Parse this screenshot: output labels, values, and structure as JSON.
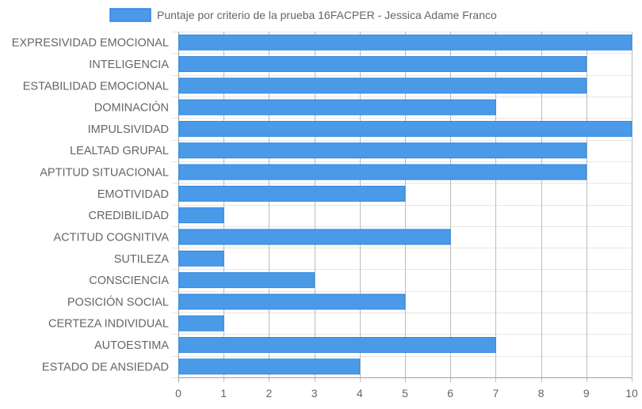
{
  "chart_data": {
    "type": "bar",
    "orientation": "horizontal",
    "categories": [
      "EXPRESIVIDAD EMOCIONAL",
      "INTELIGENCIA",
      "ESTABILIDAD EMOCIONAL",
      "DOMINACIÓN",
      "IMPULSIVIDAD",
      "LEALTAD GRUPAL",
      "APTITUD SITUACIONAL",
      "EMOTIVIDAD",
      "CREDIBILIDAD",
      "ACTITUD COGNITIVA",
      "SUTILEZA",
      "CONSCIENCIA",
      "POSICIÓN SOCIAL",
      "CERTEZA INDIVIDUAL",
      "AUTOESTIMA",
      "ESTADO DE ANSIEDAD"
    ],
    "series": [
      {
        "name": "Puntaje por criterio de la prueba 16FACPER - Jessica Adame Franco",
        "values": [
          10,
          9,
          9,
          7,
          10,
          9,
          9,
          5,
          1,
          6,
          1,
          3,
          5,
          1,
          7,
          4
        ],
        "color": "#4a9ae8"
      }
    ],
    "xlim": [
      0,
      10
    ],
    "x_ticks": [
      "0",
      "1",
      "2",
      "3",
      "4",
      "5",
      "6",
      "7",
      "8",
      "9",
      "10"
    ],
    "grid": true,
    "legend_position": "top"
  }
}
